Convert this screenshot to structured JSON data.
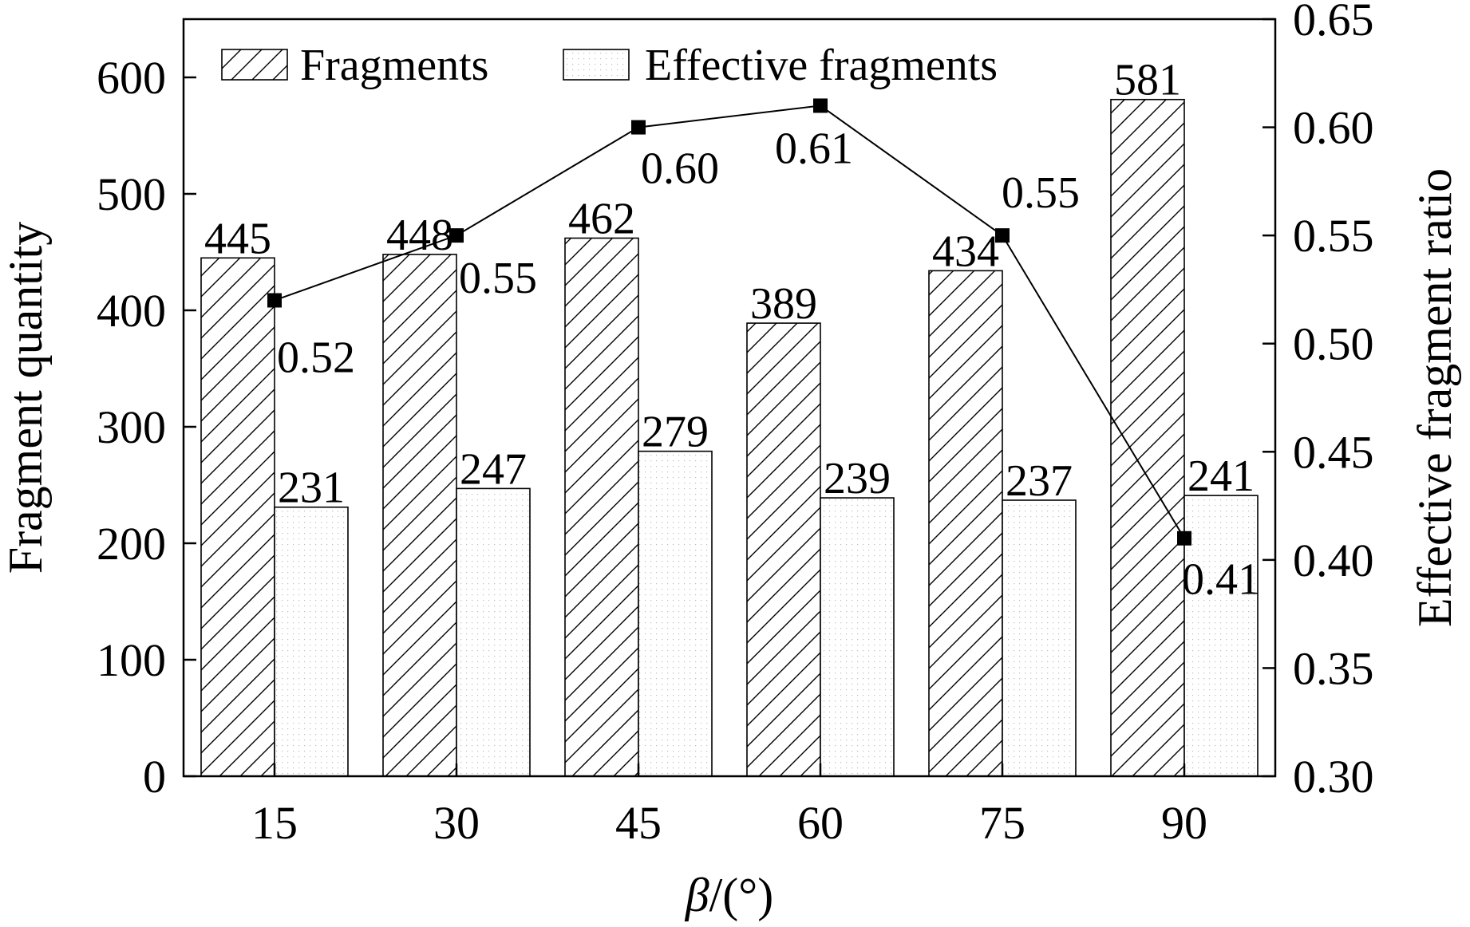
{
  "chart_data": {
    "type": "bar",
    "categories": [
      "15",
      "30",
      "45",
      "60",
      "75",
      "90"
    ],
    "xlabel_symbol": "β",
    "xlabel_unit": "/(°)",
    "ylabel": "Fragment quantity",
    "y2label": "Effective fragment ratio",
    "ylim": [
      0,
      650
    ],
    "yticks": [
      0,
      100,
      200,
      300,
      400,
      500,
      600
    ],
    "y2lim": [
      0.3,
      0.65
    ],
    "y2ticks": [
      "0.30",
      "0.35",
      "0.40",
      "0.45",
      "0.50",
      "0.55",
      "0.60",
      "0.65"
    ],
    "grid": false,
    "legend_position": "top",
    "series": [
      {
        "name": "Fragments",
        "type": "bar",
        "pattern": "hatched",
        "values": [
          445,
          448,
          462,
          389,
          434,
          581
        ],
        "labels": [
          "445",
          "448",
          "462",
          "389",
          "434",
          "581"
        ]
      },
      {
        "name": "Effective fragments",
        "type": "bar",
        "pattern": "dotted",
        "values": [
          231,
          247,
          279,
          239,
          237,
          241
        ],
        "labels": [
          "231",
          "247",
          "279",
          "239",
          "237",
          "241"
        ]
      },
      {
        "type": "line",
        "axis": "right",
        "marker": "square",
        "values": [
          0.52,
          0.55,
          0.6,
          0.61,
          0.55,
          0.41
        ],
        "labels": [
          "0.52",
          "0.55",
          "0.60",
          "0.61",
          "0.55",
          "0.41"
        ]
      }
    ],
    "colors": {
      "axis": "#000000",
      "bar_fill": "#ffffff",
      "bar_pattern": "#000000"
    }
  }
}
